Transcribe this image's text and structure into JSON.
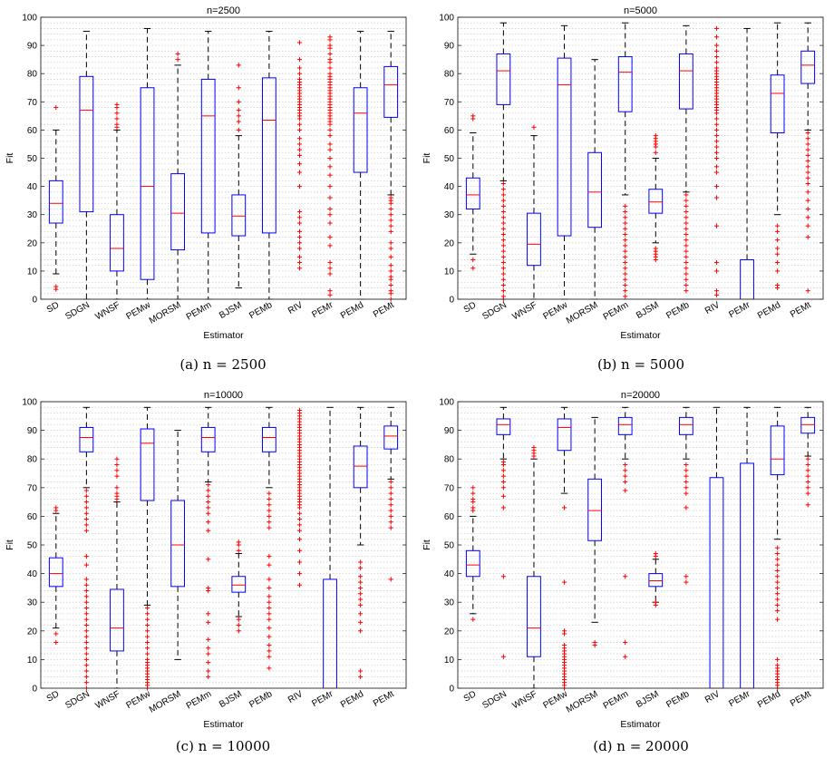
{
  "captions": [
    "(a) n = 2500",
    "(b) n = 5000",
    "(c) n = 10000",
    "(d) n = 20000"
  ],
  "chart_data": [
    {
      "type": "box",
      "title": "n=2500",
      "xlabel": "Estimator",
      "ylabel": "Fit",
      "ylim": [
        0,
        100
      ],
      "yticks": [
        0,
        10,
        20,
        30,
        40,
        50,
        60,
        70,
        80,
        90,
        100
      ],
      "grid": true,
      "categories": [
        "SD",
        "SDGN",
        "WNSF",
        "PEMw",
        "MORSM",
        "PEMm",
        "BJSM",
        "PEMb",
        "RIV",
        "PEMr",
        "PEMd",
        "PEMt"
      ],
      "boxes": [
        {
          "q1": 27,
          "median": 34,
          "q3": 42,
          "lo": 9,
          "hi": 60,
          "outliers": [
            3.5,
            4.5,
            68
          ]
        },
        {
          "q1": 31,
          "median": 67,
          "q3": 79,
          "lo": 0,
          "hi": 95,
          "outliers": []
        },
        {
          "q1": 10,
          "median": 18,
          "q3": 30,
          "lo": 0,
          "hi": 60,
          "outliers": [
            61,
            62,
            64,
            66,
            68,
            69
          ]
        },
        {
          "q1": 7,
          "median": 40,
          "q3": 75,
          "lo": 0,
          "hi": 96,
          "outliers": []
        },
        {
          "q1": 17.5,
          "median": 30.5,
          "q3": 44.5,
          "lo": 0,
          "hi": 83,
          "outliers": [
            85,
            87
          ]
        },
        {
          "q1": 23.5,
          "median": 65,
          "q3": 78,
          "lo": 0,
          "hi": 95,
          "outliers": []
        },
        {
          "q1": 22.5,
          "median": 29.5,
          "q3": 37,
          "lo": 4,
          "hi": 58,
          "outliers": [
            60,
            63,
            65,
            67,
            70,
            75,
            83
          ]
        },
        {
          "q1": 23.5,
          "median": 63.5,
          "q3": 78.5,
          "lo": 0,
          "hi": 95,
          "outliers": []
        },
        {
          "q1": null,
          "median": null,
          "q3": null,
          "lo": null,
          "hi": null,
          "outliers": [
            11,
            13,
            15,
            18,
            20,
            22,
            24,
            27,
            29,
            31,
            40,
            45,
            48,
            51,
            53,
            55,
            57,
            60,
            62,
            64,
            65,
            66,
            67,
            68,
            69,
            70,
            71,
            72,
            73,
            74,
            75,
            76,
            77,
            78,
            80,
            82,
            85,
            91
          ]
        },
        {
          "q1": null,
          "median": null,
          "q3": null,
          "lo": null,
          "hi": null,
          "outliers": [
            1.5,
            3,
            9,
            11,
            13,
            19,
            22,
            27,
            30,
            32,
            36,
            40,
            44,
            47,
            50,
            53,
            55,
            58,
            60,
            62,
            63,
            64,
            65,
            66,
            67,
            68,
            69,
            70,
            71,
            72,
            73,
            74,
            75,
            76,
            77,
            78,
            79,
            80,
            82,
            84,
            85,
            87,
            89,
            90,
            92,
            93
          ]
        },
        {
          "q1": 45,
          "median": 66,
          "q3": 75,
          "lo": 0,
          "hi": 95,
          "outliers": []
        },
        {
          "q1": 64.5,
          "median": 76,
          "q3": 82.5,
          "lo": 37,
          "hi": 95,
          "outliers": [
            0,
            2,
            3,
            5,
            7,
            8,
            10,
            12,
            15,
            18,
            20,
            24,
            26,
            28,
            30,
            32,
            34,
            35,
            36
          ]
        }
      ]
    },
    {
      "type": "box",
      "title": "n=5000",
      "xlabel": "Estimator",
      "ylabel": "Fit",
      "ylim": [
        0,
        100
      ],
      "yticks": [
        0,
        10,
        20,
        30,
        40,
        50,
        60,
        70,
        80,
        90,
        100
      ],
      "grid": true,
      "categories": [
        "SD",
        "SDGN",
        "WNSF",
        "PEMw",
        "MORSM",
        "PEMm",
        "BJSM",
        "PEMb",
        "RIV",
        "PEMr",
        "PEMd",
        "PEMt"
      ],
      "boxes": [
        {
          "q1": 32,
          "median": 37,
          "q3": 43,
          "lo": 16,
          "hi": 59,
          "outliers": [
            11,
            14,
            64,
            65
          ]
        },
        {
          "q1": 69,
          "median": 81,
          "q3": 87,
          "lo": 42,
          "hi": 98,
          "outliers": [
            0,
            1,
            3,
            5,
            7,
            9,
            11,
            13,
            15,
            17,
            19,
            21,
            23,
            25,
            27,
            29,
            31,
            33,
            35,
            37,
            39,
            41
          ]
        },
        {
          "q1": 12,
          "median": 19.5,
          "q3": 30.5,
          "lo": 0,
          "hi": 58,
          "outliers": [
            61
          ]
        },
        {
          "q1": 22.5,
          "median": 76,
          "q3": 85.5,
          "lo": 0,
          "hi": 97,
          "outliers": []
        },
        {
          "q1": 25.5,
          "median": 38,
          "q3": 52,
          "lo": 0,
          "hi": 85,
          "outliers": []
        },
        {
          "q1": 66.5,
          "median": 80.5,
          "q3": 86,
          "lo": 37,
          "hi": 98,
          "outliers": [
            1,
            3,
            5,
            7,
            9,
            11,
            13,
            15,
            17,
            19,
            21,
            23,
            25,
            27,
            29,
            31,
            33
          ]
        },
        {
          "q1": 30.5,
          "median": 34.5,
          "q3": 39,
          "lo": 20,
          "hi": 50,
          "outliers": [
            14,
            15,
            16,
            17,
            18,
            52,
            54,
            55,
            56,
            57,
            58
          ]
        },
        {
          "q1": 67.5,
          "median": 81,
          "q3": 87,
          "lo": 38,
          "hi": 97,
          "outliers": [
            3,
            5,
            7,
            9,
            11,
            13,
            15,
            17,
            19,
            21,
            23,
            25,
            27,
            29,
            31,
            33,
            35,
            37
          ]
        },
        {
          "q1": null,
          "median": null,
          "q3": null,
          "lo": null,
          "hi": null,
          "outliers": [
            1.5,
            3,
            10,
            13,
            26,
            36,
            40,
            45,
            47,
            50,
            52,
            54,
            56,
            58,
            60,
            62,
            64,
            66,
            67,
            68,
            69,
            70,
            71,
            72,
            73,
            74,
            75,
            76,
            77,
            78,
            79,
            80,
            81,
            82,
            84,
            86,
            88,
            90,
            93,
            96
          ]
        },
        {
          "q1": 0,
          "median": 0,
          "q3": 14,
          "lo": 0,
          "hi": 96,
          "outliers": []
        },
        {
          "q1": 59,
          "median": 73,
          "q3": 79.5,
          "lo": 30,
          "hi": 98,
          "outliers": [
            4,
            5,
            10,
            13,
            16,
            18,
            21,
            24,
            26
          ]
        },
        {
          "q1": 76.5,
          "median": 83,
          "q3": 88,
          "lo": 60,
          "hi": 98,
          "outliers": [
            3,
            22,
            26,
            29,
            32,
            35,
            38,
            41,
            43,
            45,
            47,
            49,
            51,
            53,
            55,
            57,
            59
          ]
        }
      ]
    },
    {
      "type": "box",
      "title": "n=10000",
      "xlabel": "Estimator",
      "ylabel": "Fit",
      "ylim": [
        0,
        100
      ],
      "yticks": [
        0,
        10,
        20,
        30,
        40,
        50,
        60,
        70,
        80,
        90,
        100
      ],
      "grid": true,
      "categories": [
        "SD",
        "SDGN",
        "WNSF",
        "PEMw",
        "MORSM",
        "PEMm",
        "BJSM",
        "PEMb",
        "RIV",
        "PEMr",
        "PEMd",
        "PEMt"
      ],
      "boxes": [
        {
          "q1": 35.5,
          "median": 40,
          "q3": 45.5,
          "lo": 21,
          "hi": 61,
          "outliers": [
            16,
            19,
            62,
            63
          ]
        },
        {
          "q1": 82.5,
          "median": 87.5,
          "q3": 91,
          "lo": 70,
          "hi": 98,
          "outliers": [
            0,
            2,
            4,
            6,
            8,
            10,
            12,
            14,
            16,
            18,
            20,
            22,
            24,
            26,
            28,
            30,
            32,
            34,
            36,
            38,
            43,
            46,
            55,
            57,
            59,
            61,
            63,
            65,
            67,
            69
          ]
        },
        {
          "q1": 13,
          "median": 21,
          "q3": 34.5,
          "lo": 0,
          "hi": 65,
          "outliers": [
            66,
            67,
            68,
            70,
            74,
            76,
            78,
            80
          ]
        },
        {
          "q1": 65.5,
          "median": 85.5,
          "q3": 90.5,
          "lo": 29,
          "hi": 98,
          "outliers": [
            0,
            1,
            2,
            3,
            4,
            5,
            6,
            7,
            8,
            9,
            10,
            12,
            14,
            16,
            18,
            20,
            22,
            24,
            26,
            28
          ]
        },
        {
          "q1": 35.5,
          "median": 50,
          "q3": 65.5,
          "lo": 10,
          "hi": 90,
          "outliers": []
        },
        {
          "q1": 82.5,
          "median": 87.5,
          "q3": 91,
          "lo": 72,
          "hi": 98,
          "outliers": [
            4,
            6,
            9,
            12,
            14,
            17,
            23,
            26,
            34,
            35,
            45,
            55,
            58,
            61,
            63,
            65,
            67,
            69,
            71
          ]
        },
        {
          "q1": 33.5,
          "median": 36,
          "q3": 39,
          "lo": 25,
          "hi": 47,
          "outliers": [
            20,
            22,
            24,
            48,
            50,
            51
          ]
        },
        {
          "q1": 82.5,
          "median": 87.5,
          "q3": 91,
          "lo": 70,
          "hi": 98,
          "outliers": [
            7,
            11,
            13,
            15,
            18,
            21,
            24,
            26,
            28,
            30,
            32,
            35,
            38,
            43,
            46,
            56,
            58,
            60,
            62,
            64,
            66,
            68
          ]
        },
        {
          "q1": null,
          "median": null,
          "q3": null,
          "lo": null,
          "hi": null,
          "outliers": [
            36,
            40,
            44,
            48,
            52,
            55,
            57,
            59,
            61,
            63,
            64,
            65,
            66,
            67,
            68,
            69,
            70,
            71,
            72,
            73,
            74,
            75,
            76,
            77,
            78,
            79,
            80,
            81,
            82,
            83,
            84,
            85,
            86,
            87,
            88,
            89,
            90,
            91,
            92,
            93,
            94,
            95,
            96,
            97
          ]
        },
        {
          "q1": 0,
          "median": 0,
          "q3": 38,
          "lo": 0,
          "hi": 98,
          "outliers": []
        },
        {
          "q1": 70,
          "median": 77.5,
          "q3": 84.5,
          "lo": 50,
          "hi": 98,
          "outliers": [
            4,
            6,
            20,
            23,
            26,
            29,
            31,
            33,
            35,
            37,
            39,
            42,
            44
          ]
        },
        {
          "q1": 83.5,
          "median": 88,
          "q3": 91.5,
          "lo": 73,
          "hi": 98,
          "outliers": [
            38,
            56,
            58,
            60,
            62,
            64,
            66,
            68,
            70,
            72
          ]
        }
      ]
    },
    {
      "type": "box",
      "title": "n=20000",
      "xlabel": "Estimator",
      "ylabel": "Fit",
      "ylim": [
        0,
        100
      ],
      "yticks": [
        0,
        10,
        20,
        30,
        40,
        50,
        60,
        70,
        80,
        90,
        100
      ],
      "grid": true,
      "categories": [
        "SD",
        "SDGN",
        "WNSF",
        "PEMw",
        "MORSM",
        "PEMm",
        "BJSM",
        "PEMb",
        "RIV",
        "PEMr",
        "PEMd",
        "PEMt"
      ],
      "boxes": [
        {
          "q1": 39,
          "median": 43,
          "q3": 48,
          "lo": 26,
          "hi": 60,
          "outliers": [
            24,
            62,
            63,
            65,
            66,
            68,
            70
          ]
        },
        {
          "q1": 88.5,
          "median": 92,
          "q3": 94,
          "lo": 80,
          "hi": 98,
          "outliers": [
            11,
            39,
            63,
            67,
            70,
            72,
            74,
            76,
            78,
            79
          ]
        },
        {
          "q1": 11,
          "median": 21,
          "q3": 39,
          "lo": 0,
          "hi": 80,
          "outliers": [
            81,
            82,
            83,
            84
          ]
        },
        {
          "q1": 83,
          "median": 91,
          "q3": 94,
          "lo": 68,
          "hi": 98,
          "outliers": [
            0,
            1,
            2,
            3,
            4,
            5,
            6,
            7,
            8,
            9,
            10,
            11,
            12,
            13,
            14,
            15,
            19,
            20,
            37,
            63
          ]
        },
        {
          "q1": 51.5,
          "median": 62,
          "q3": 73,
          "lo": 23,
          "hi": 94.5,
          "outliers": [
            15,
            16
          ]
        },
        {
          "q1": 88.5,
          "median": 92,
          "q3": 94.5,
          "lo": 80,
          "hi": 98,
          "outliers": [
            11,
            16,
            39,
            69,
            72,
            74,
            76,
            78
          ]
        },
        {
          "q1": 35.5,
          "median": 37.5,
          "q3": 40,
          "lo": 30,
          "hi": 45,
          "outliers": [
            29,
            30,
            46,
            47
          ]
        },
        {
          "q1": 88.5,
          "median": 92,
          "q3": 94.5,
          "lo": 80,
          "hi": 98,
          "outliers": [
            37,
            39,
            63,
            68,
            70,
            72,
            74,
            76,
            78
          ]
        },
        {
          "q1": 0,
          "median": 0,
          "q3": 73.5,
          "lo": 0,
          "hi": 98,
          "outliers": []
        },
        {
          "q1": 0,
          "median": 0,
          "q3": 78.5,
          "lo": 0,
          "hi": 98,
          "outliers": []
        },
        {
          "q1": 74.5,
          "median": 80,
          "q3": 91.5,
          "lo": 52,
          "hi": 98,
          "outliers": [
            0,
            1,
            2,
            3,
            4,
            5,
            6,
            7,
            8,
            10,
            24,
            27,
            29,
            31,
            33,
            35,
            37,
            39,
            41,
            43,
            45,
            47,
            49
          ]
        },
        {
          "q1": 89,
          "median": 92,
          "q3": 94.5,
          "lo": 81,
          "hi": 98,
          "outliers": [
            64,
            68,
            70,
            72,
            74,
            76,
            78,
            80
          ]
        }
      ]
    }
  ]
}
